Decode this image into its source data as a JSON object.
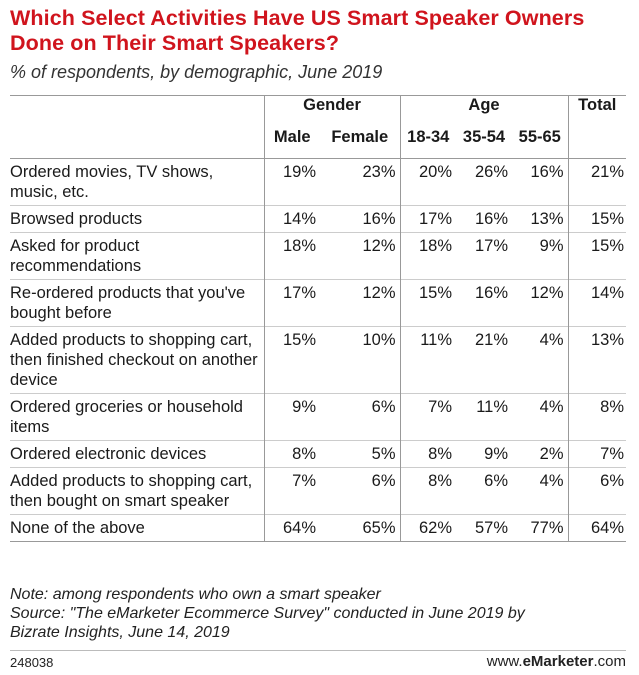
{
  "chart_data": {
    "type": "table",
    "title": "Which Select Activities Have US Smart Speaker Owners Done on Their Smart Speakers?",
    "subtitle": "% of respondents, by demographic, June 2019",
    "groups": [
      "Gender",
      "Age",
      "Total"
    ],
    "columns": [
      "Male",
      "Female",
      "18-34",
      "35-54",
      "55-65",
      "Total"
    ],
    "rows": [
      {
        "label": "Ordered movies, TV shows, music, etc.",
        "values": [
          "19%",
          "23%",
          "20%",
          "26%",
          "16%",
          "21%"
        ]
      },
      {
        "label": "Browsed products",
        "values": [
          "14%",
          "16%",
          "17%",
          "16%",
          "13%",
          "15%"
        ]
      },
      {
        "label": "Asked for product recommendations",
        "values": [
          "18%",
          "12%",
          "18%",
          "17%",
          "9%",
          "15%"
        ]
      },
      {
        "label": "Re-ordered products that you've bought before",
        "values": [
          "17%",
          "12%",
          "15%",
          "16%",
          "12%",
          "14%"
        ]
      },
      {
        "label": "Added products to shopping cart, then finished checkout on another device",
        "values": [
          "15%",
          "10%",
          "11%",
          "21%",
          "4%",
          "13%"
        ]
      },
      {
        "label": "Ordered groceries or household items",
        "values": [
          "9%",
          "6%",
          "7%",
          "11%",
          "4%",
          "8%"
        ]
      },
      {
        "label": "Ordered electronic devices",
        "values": [
          "8%",
          "5%",
          "8%",
          "9%",
          "2%",
          "7%"
        ]
      },
      {
        "label": "Added products to shopping cart, then bought on smart speaker",
        "values": [
          "7%",
          "6%",
          "8%",
          "6%",
          "4%",
          "6%"
        ]
      },
      {
        "label": "None of the above",
        "values": [
          "64%",
          "65%",
          "62%",
          "57%",
          "77%",
          "64%"
        ]
      }
    ]
  },
  "note": "Note: among respondents who own a smart speaker",
  "source_line1": "Source: \"The eMarketer Ecommerce Survey\" conducted in June 2019 by",
  "source_line2": "Bizrate Insights, June 14, 2019",
  "footer": {
    "id": "248038",
    "brand_prefix": "www.",
    "brand_bold": "eMarketer",
    "brand_suffix": ".com"
  }
}
